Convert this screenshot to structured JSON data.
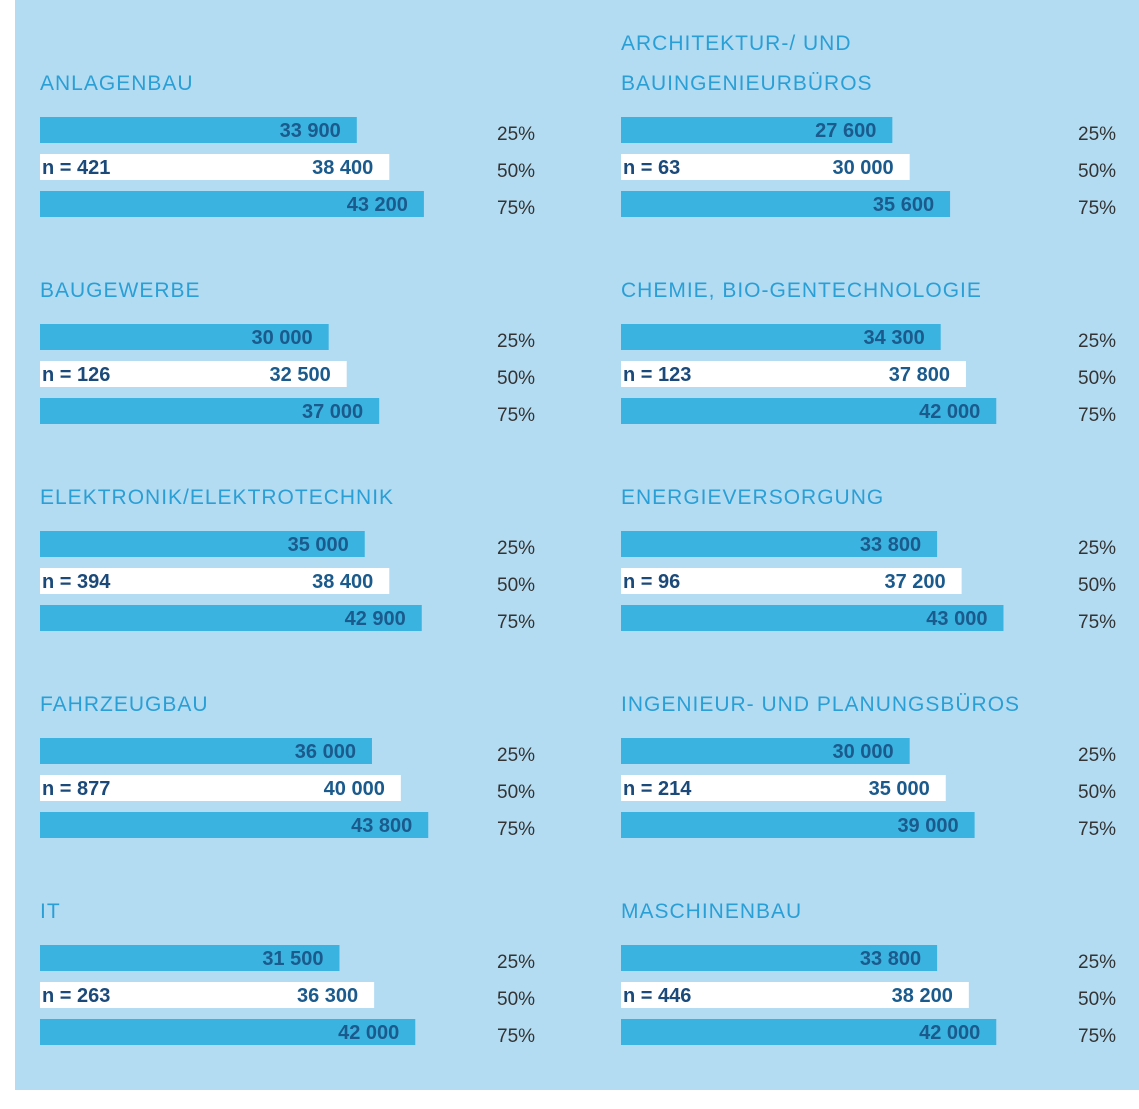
{
  "chart_data": [
    {
      "type": "bar",
      "title": [
        "ANLAGENBAU"
      ],
      "annotation": "n = 421",
      "categories": [
        "25%",
        "50%",
        "75%"
      ],
      "values": [
        33900,
        38400,
        43200
      ],
      "value_labels": [
        "33 900",
        "38 400",
        "43 200"
      ],
      "colors": [
        "#3bb3e0",
        "#ffffff",
        "#3bb3e0"
      ],
      "xlim": [
        -10000,
        50000
      ]
    },
    {
      "type": "bar",
      "title": [
        "ARCHITEKTUR-/ UND",
        "BAUINGENIEURBÜROS"
      ],
      "annotation": "n = 63",
      "categories": [
        "25%",
        "50%",
        "75%"
      ],
      "values": [
        27600,
        30000,
        35600
      ],
      "value_labels": [
        "27 600",
        "30 000",
        "35 600"
      ],
      "colors": [
        "#3bb3e0",
        "#ffffff",
        "#3bb3e0"
      ],
      "xlim": [
        -10000,
        50000
      ]
    },
    {
      "type": "bar",
      "title": [
        "BAUGEWERBE"
      ],
      "annotation": "n = 126",
      "categories": [
        "25%",
        "50%",
        "75%"
      ],
      "values": [
        30000,
        32500,
        37000
      ],
      "value_labels": [
        "30 000",
        "32 500",
        "37 000"
      ],
      "colors": [
        "#3bb3e0",
        "#ffffff",
        "#3bb3e0"
      ],
      "xlim": [
        -10000,
        50000
      ]
    },
    {
      "type": "bar",
      "title": [
        "CHEMIE, BIO-GENTECHNOLOGIE"
      ],
      "annotation": "n = 123",
      "categories": [
        "25%",
        "50%",
        "75%"
      ],
      "values": [
        34300,
        37800,
        42000
      ],
      "value_labels": [
        "34 300",
        "37 800",
        "42 000"
      ],
      "colors": [
        "#3bb3e0",
        "#ffffff",
        "#3bb3e0"
      ],
      "xlim": [
        -10000,
        50000
      ]
    },
    {
      "type": "bar",
      "title": [
        "ELEKTRONIK/ELEKTROTECHNIK"
      ],
      "annotation": "n = 394",
      "categories": [
        "25%",
        "50%",
        "75%"
      ],
      "values": [
        35000,
        38400,
        42900
      ],
      "value_labels": [
        "35 000",
        "38 400",
        "42 900"
      ],
      "colors": [
        "#3bb3e0",
        "#ffffff",
        "#3bb3e0"
      ],
      "xlim": [
        -10000,
        50000
      ]
    },
    {
      "type": "bar",
      "title": [
        "ENERGIEVERSORGUNG"
      ],
      "annotation": "n = 96",
      "categories": [
        "25%",
        "50%",
        "75%"
      ],
      "values": [
        33800,
        37200,
        43000
      ],
      "value_labels": [
        "33 800",
        "37 200",
        "43 000"
      ],
      "colors": [
        "#3bb3e0",
        "#ffffff",
        "#3bb3e0"
      ],
      "xlim": [
        -10000,
        50000
      ]
    },
    {
      "type": "bar",
      "title": [
        "FAHRZEUGBAU"
      ],
      "annotation": "n = 877",
      "categories": [
        "25%",
        "50%",
        "75%"
      ],
      "values": [
        36000,
        40000,
        43800
      ],
      "value_labels": [
        "36 000",
        "40 000",
        "43 800"
      ],
      "colors": [
        "#3bb3e0",
        "#ffffff",
        "#3bb3e0"
      ],
      "xlim": [
        -10000,
        50000
      ]
    },
    {
      "type": "bar",
      "title": [
        "INGENIEUR- UND PLANUNGSBÜROS"
      ],
      "annotation": "n = 214",
      "categories": [
        "25%",
        "50%",
        "75%"
      ],
      "values": [
        30000,
        35000,
        39000
      ],
      "value_labels": [
        "30 000",
        "35 000",
        "39 000"
      ],
      "colors": [
        "#3bb3e0",
        "#ffffff",
        "#3bb3e0"
      ],
      "xlim": [
        -10000,
        50000
      ]
    },
    {
      "type": "bar",
      "title": [
        "IT"
      ],
      "annotation": "n = 263",
      "categories": [
        "25%",
        "50%",
        "75%"
      ],
      "values": [
        31500,
        36300,
        42000
      ],
      "value_labels": [
        "31 500",
        "36 300",
        "42 000"
      ],
      "colors": [
        "#3bb3e0",
        "#ffffff",
        "#3bb3e0"
      ],
      "xlim": [
        -10000,
        50000
      ]
    },
    {
      "type": "bar",
      "title": [
        "MASCHINENBAU"
      ],
      "annotation": "n = 446",
      "categories": [
        "25%",
        "50%",
        "75%"
      ],
      "values": [
        33800,
        38200,
        42000
      ],
      "value_labels": [
        "33 800",
        "38 200",
        "42 000"
      ],
      "colors": [
        "#3bb3e0",
        "#ffffff",
        "#3bb3e0"
      ],
      "xlim": [
        -10000,
        50000
      ]
    }
  ]
}
